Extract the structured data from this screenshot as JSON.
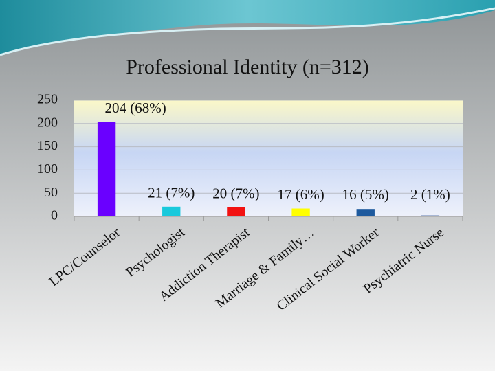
{
  "chart_data": {
    "type": "bar",
    "title": "Professional Identity (n=312)",
    "categories": [
      "LPC/Counselor",
      "Psychologist",
      "Addiction Therapist",
      "Marriage & Family…",
      "Clinical Social Worker",
      "Psychiatric Nurse"
    ],
    "values": [
      204,
      21,
      20,
      17,
      16,
      2
    ],
    "value_labels": [
      "204 (68%)",
      "21 (7%)",
      "20 (7%)",
      "17 (6%)",
      "16 (5%)",
      "2 (1%)"
    ],
    "colors": [
      "#6a00ff",
      "#19c9dc",
      "#f21212",
      "#ffff00",
      "#1e5a9e",
      "#254a8c"
    ],
    "ylim": [
      0,
      250
    ],
    "yticks": [
      0,
      50,
      100,
      150,
      200,
      250
    ],
    "grid": true
  }
}
